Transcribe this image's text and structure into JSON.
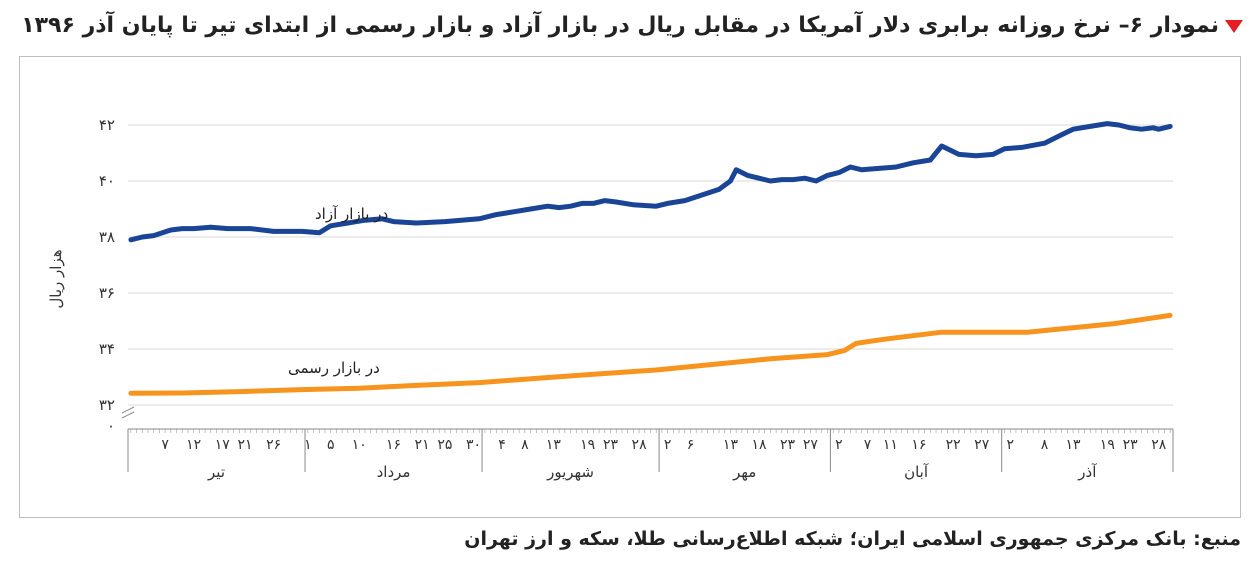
{
  "title": "نمودار ۶– نرخ روزانه برابری دلار آمریکا در مقابل ریال در بازار آزاد و بازار رسمی از ابتدای تیر تا پایان آذر ۱۳۹۶",
  "source": "منبع: بانک مرکزی جمهوری اسلامی ایران؛ شبکه اطلاع‌رسانی طلا، سکه و ارز تهران",
  "colors": {
    "free_market": "#1a4597",
    "official": "#f7941d",
    "grid": "#d9d9d9",
    "title_marker": "#e31e24"
  },
  "chart_data": {
    "type": "line",
    "ylabel": "هزار ریال",
    "ylim": [
      31.5,
      43
    ],
    "y_axis_break": true,
    "y_ticks": [
      {
        "value": 0,
        "label": "۰"
      },
      {
        "value": 32,
        "label": "۳۲"
      },
      {
        "value": 34,
        "label": "۳۴"
      },
      {
        "value": 36,
        "label": "۳۶"
      },
      {
        "value": 38,
        "label": "۳۸"
      },
      {
        "value": 40,
        "label": "۴۰"
      },
      {
        "value": 42,
        "label": "۴۲"
      }
    ],
    "grid": true,
    "months": [
      {
        "name": "تیر",
        "days": 31,
        "ticks": [
          "۷",
          "۱۲",
          "۱۷",
          "۲۱",
          "۲۶"
        ],
        "tick_days": [
          7,
          12,
          17,
          21,
          26
        ]
      },
      {
        "name": "مرداد",
        "days": 31,
        "ticks": [
          "۱",
          "۵",
          "۱۰",
          "۱۶",
          "۲۱",
          "۲۵",
          "۳۰"
        ],
        "tick_days": [
          1,
          5,
          10,
          16,
          21,
          25,
          30
        ]
      },
      {
        "name": "شهریور",
        "days": 31,
        "ticks": [
          "۴",
          "۸",
          "۱۳",
          "۱۹",
          "۲۳",
          "۲۸"
        ],
        "tick_days": [
          4,
          8,
          13,
          19,
          23,
          28
        ]
      },
      {
        "name": "مهر",
        "days": 30,
        "ticks": [
          "۲",
          "۶",
          "۱۳",
          "۱۸",
          "۲۳",
          "۲۷"
        ],
        "tick_days": [
          2,
          6,
          13,
          18,
          23,
          27
        ]
      },
      {
        "name": "آبان",
        "days": 30,
        "ticks": [
          "۲",
          "۷",
          "۱۱",
          "۱۶",
          "۲۲",
          "۲۷"
        ],
        "tick_days": [
          2,
          7,
          11,
          16,
          22,
          27
        ]
      },
      {
        "name": "آذر",
        "days": 30,
        "ticks": [
          "۲",
          "۸",
          "۱۳",
          "۱۹",
          "۲۳",
          "۲۸"
        ],
        "tick_days": [
          2,
          8,
          13,
          19,
          23,
          28
        ]
      }
    ],
    "series": [
      {
        "name": "در بازار آزاد",
        "color": "#1a4597",
        "points": [
          [
            "تیر 1",
            37.9
          ],
          [
            "تیر 3",
            38.0
          ],
          [
            "تیر 5",
            38.05
          ],
          [
            "تیر 8",
            38.25
          ],
          [
            "تیر 10",
            38.3
          ],
          [
            "تیر 12",
            38.3
          ],
          [
            "تیر 15",
            38.35
          ],
          [
            "تیر 18",
            38.3
          ],
          [
            "تیر 22",
            38.3
          ],
          [
            "تیر 26",
            38.2
          ],
          [
            "تیر 31",
            38.2
          ],
          [
            "مرداد 3",
            38.15
          ],
          [
            "مرداد 5",
            38.4
          ],
          [
            "مرداد 8",
            38.5
          ],
          [
            "مرداد 11",
            38.6
          ],
          [
            "مرداد 14",
            38.65
          ],
          [
            "مرداد 16",
            38.55
          ],
          [
            "مرداد 20",
            38.5
          ],
          [
            "مرداد 25",
            38.55
          ],
          [
            "مرداد 31",
            38.65
          ],
          [
            "شهریور 3",
            38.8
          ],
          [
            "شهریور 6",
            38.9
          ],
          [
            "شهریور 9",
            39.0
          ],
          [
            "شهریور 12",
            39.1
          ],
          [
            "شهریور 14",
            39.05
          ],
          [
            "شهریور 16",
            39.1
          ],
          [
            "شهریور 18",
            39.2
          ],
          [
            "شهریور 20",
            39.2
          ],
          [
            "شهریور 22",
            39.3
          ],
          [
            "شهریور 24",
            39.25
          ],
          [
            "شهریور 27",
            39.15
          ],
          [
            "شهریور 31",
            39.1
          ],
          [
            "مهر 2",
            39.2
          ],
          [
            "مهر 5",
            39.3
          ],
          [
            "مهر 8",
            39.5
          ],
          [
            "مهر 11",
            39.7
          ],
          [
            "مهر 13",
            40.0
          ],
          [
            "مهر 14",
            40.4
          ],
          [
            "مهر 16",
            40.2
          ],
          [
            "مهر 18",
            40.1
          ],
          [
            "مهر 20",
            40.0
          ],
          [
            "مهر 22",
            40.05
          ],
          [
            "مهر 24",
            40.05
          ],
          [
            "مهر 26",
            40.1
          ],
          [
            "مهر 28",
            40.0
          ],
          [
            "مهر 30",
            40.2
          ],
          [
            "آبان 2",
            40.3
          ],
          [
            "آبان 4",
            40.5
          ],
          [
            "آبان 6",
            40.4
          ],
          [
            "آبان 9",
            40.45
          ],
          [
            "آبان 12",
            40.5
          ],
          [
            "آبان 15",
            40.65
          ],
          [
            "آبان 18",
            40.75
          ],
          [
            "آبان 20",
            41.25
          ],
          [
            "آبان 23",
            40.95
          ],
          [
            "آبان 26",
            40.9
          ],
          [
            "آبان 29",
            40.95
          ],
          [
            "آذر 1",
            41.15
          ],
          [
            "آذر 4",
            41.2
          ],
          [
            "آذر 8",
            41.35
          ],
          [
            "آذر 11",
            41.65
          ],
          [
            "آذر 13",
            41.85
          ],
          [
            "آذر 16",
            41.95
          ],
          [
            "آذر 19",
            42.05
          ],
          [
            "آذر 21",
            42.0
          ],
          [
            "آذر 23",
            41.9
          ],
          [
            "آذر 25",
            41.85
          ],
          [
            "آذر 27",
            41.9
          ],
          [
            "آذر 28",
            41.85
          ],
          [
            "آذر 30",
            41.95
          ]
        ]
      },
      {
        "name": "در بازار رسمی",
        "color": "#f7941d",
        "points": [
          [
            "تیر 1",
            32.42
          ],
          [
            "تیر 10",
            32.43
          ],
          [
            "تیر 20",
            32.48
          ],
          [
            "تیر 31",
            32.55
          ],
          [
            "مرداد 10",
            32.6
          ],
          [
            "مرداد 20",
            32.7
          ],
          [
            "مرداد 31",
            32.8
          ],
          [
            "شهریور 10",
            32.95
          ],
          [
            "شهریور 20",
            33.1
          ],
          [
            "شهریور 31",
            33.25
          ],
          [
            "مهر 10",
            33.45
          ],
          [
            "مهر 20",
            33.65
          ],
          [
            "مهر 30",
            33.8
          ],
          [
            "آبان 3",
            33.95
          ],
          [
            "آبان 5",
            34.2
          ],
          [
            "آبان 10",
            34.35
          ],
          [
            "آبان 20",
            34.6
          ],
          [
            "آبان 30",
            34.6
          ],
          [
            "آذر 5",
            34.6
          ],
          [
            "آذر 10",
            34.7
          ],
          [
            "آذر 15",
            34.8
          ],
          [
            "آذر 20",
            34.9
          ],
          [
            "آذر 25",
            35.05
          ],
          [
            "آذر 30",
            35.2
          ]
        ]
      }
    ],
    "annotations": [
      {
        "text": "در بازار آزاد",
        "series": 0
      },
      {
        "text": "در بازار رسمی",
        "series": 1
      }
    ]
  }
}
